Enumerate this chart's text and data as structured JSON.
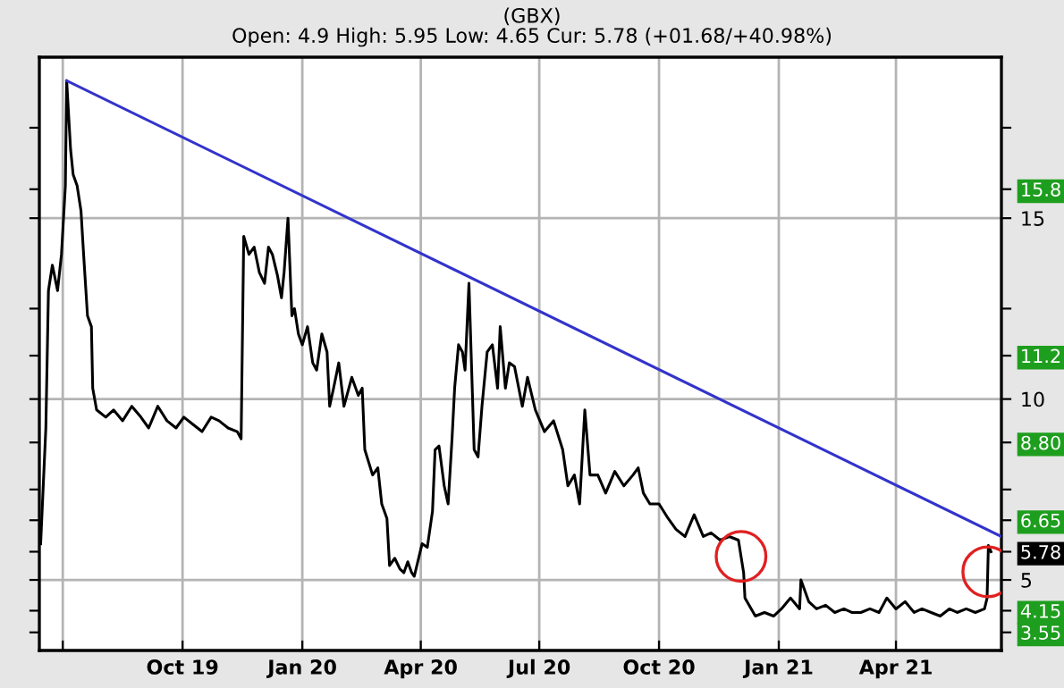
{
  "chart_data": {
    "type": "line",
    "title": "(GBX)",
    "subtitle": "Open: 4.9 High: 5.95 Low: 4.65 Cur: 5.78 (+01.68/+40.98%)",
    "xlim": [
      "2019-06-13",
      "2021-06-21"
    ],
    "xticks": [
      {
        "value": "2019-07-01",
        "label": null
      },
      {
        "value": "2019-10-01",
        "label": "Oct 19"
      },
      {
        "value": "2020-01-01",
        "label": "Jan 20"
      },
      {
        "value": "2020-04-01",
        "label": "Apr 20"
      },
      {
        "value": "2020-07-01",
        "label": "Jul 20"
      },
      {
        "value": "2020-10-01",
        "label": "Oct 20"
      },
      {
        "value": "2021-01-01",
        "label": "Jan 21"
      },
      {
        "value": "2021-04-01",
        "label": "Apr 21"
      }
    ],
    "ylim": [
      3.05,
      19.45
    ],
    "yticks": [
      3.55,
      4.15,
      5,
      5.78,
      6.65,
      {
        "value": 7.5,
        "label": null
      },
      {
        "value": 8.8,
        "label": "8.80"
      },
      10,
      11.2,
      {
        "value": 12.5,
        "label": null
      },
      15,
      15.8,
      {
        "value": 17.5,
        "label": null
      }
    ],
    "grid": true,
    "series": [
      {
        "color": "#000000",
        "x": [
          "2019-06-14",
          "2019-06-18",
          "2019-06-20",
          "2019-06-23",
          "2019-06-27",
          "2019-06-30",
          "2019-07-03",
          "2019-07-04",
          "2019-07-07",
          "2019-07-09",
          "2019-07-12",
          "2019-07-15",
          "2019-07-17",
          "2019-07-20",
          "2019-07-23",
          "2019-07-24",
          "2019-07-27",
          "2019-08-03",
          "2019-08-09",
          "2019-08-16",
          "2019-08-23",
          "2019-08-30",
          "2019-09-05",
          "2019-09-12",
          "2019-09-19",
          "2019-09-26",
          "2019-10-02",
          "2019-10-09",
          "2019-10-16",
          "2019-10-23",
          "2019-10-29",
          "2019-11-05",
          "2019-11-12",
          "2019-11-15",
          "2019-11-17",
          "2019-11-21",
          "2019-11-25",
          "2019-11-29",
          "2019-12-03",
          "2019-12-06",
          "2019-12-09",
          "2019-12-13",
          "2019-12-16",
          "2019-12-18",
          "2019-12-21",
          "2019-12-24",
          "2019-12-26",
          "2019-12-29",
          "2020-01-01",
          "2020-01-05",
          "2020-01-09",
          "2020-01-12",
          "2020-01-16",
          "2020-01-20",
          "2020-01-22",
          "2020-01-25",
          "2020-01-29",
          "2020-02-02",
          "2020-02-08",
          "2020-02-13",
          "2020-02-16",
          "2020-02-18",
          "2020-02-24",
          "2020-02-28",
          "2020-03-02",
          "2020-03-06",
          "2020-03-08",
          "2020-03-12",
          "2020-03-16",
          "2020-03-19",
          "2020-03-22",
          "2020-03-25",
          "2020-03-27",
          "2020-04-02",
          "2020-04-06",
          "2020-04-10",
          "2020-04-12",
          "2020-04-15",
          "2020-04-19",
          "2020-04-22",
          "2020-04-25",
          "2020-04-27",
          "2020-04-30",
          "2020-05-03",
          "2020-05-05",
          "2020-05-08",
          "2020-05-12",
          "2020-05-15",
          "2020-05-18",
          "2020-05-22",
          "2020-05-26",
          "2020-05-30",
          "2020-06-01",
          "2020-06-05",
          "2020-06-08",
          "2020-06-12",
          "2020-06-18",
          "2020-06-22",
          "2020-06-28",
          "2020-07-05",
          "2020-07-12",
          "2020-07-19",
          "2020-07-23",
          "2020-07-28",
          "2020-08-01",
          "2020-08-05",
          "2020-08-09",
          "2020-08-15",
          "2020-08-21",
          "2020-08-28",
          "2020-09-04",
          "2020-09-11",
          "2020-09-15",
          "2020-09-19",
          "2020-09-24",
          "2020-10-01",
          "2020-10-08",
          "2020-10-14",
          "2020-10-21",
          "2020-10-28",
          "2020-11-04",
          "2020-11-10",
          "2020-11-17",
          "2020-11-24",
          "2020-12-01",
          "2020-12-05",
          "2020-12-06",
          "2020-12-14",
          "2020-12-21",
          "2020-12-28",
          "2021-01-03",
          "2021-01-10",
          "2021-01-17",
          "2021-01-18",
          "2021-01-24",
          "2021-01-30",
          "2021-02-06",
          "2021-02-13",
          "2021-02-20",
          "2021-02-26",
          "2021-03-05",
          "2021-03-12",
          "2021-03-19",
          "2021-03-25",
          "2021-04-01",
          "2021-04-08",
          "2021-04-15",
          "2021-04-21",
          "2021-04-28",
          "2021-05-05",
          "2021-05-12",
          "2021-05-18",
          "2021-05-25",
          "2021-06-01",
          "2021-06-08",
          "2021-06-10",
          "2021-06-11",
          "2021-06-13"
        ],
        "values": [
          6.0,
          9.2,
          13.0,
          13.7,
          13.0,
          14.0,
          15.9,
          18.8,
          16.9,
          16.2,
          15.9,
          15.2,
          14.0,
          12.3,
          12.0,
          10.3,
          9.7,
          9.5,
          9.7,
          9.4,
          9.8,
          9.5,
          9.2,
          9.8,
          9.4,
          9.2,
          9.5,
          9.3,
          9.1,
          9.5,
          9.4,
          9.2,
          9.1,
          8.9,
          14.5,
          14.0,
          14.2,
          13.5,
          13.2,
          14.2,
          14.0,
          13.4,
          12.8,
          13.5,
          15.0,
          12.3,
          12.5,
          11.8,
          11.5,
          12.0,
          11.0,
          10.8,
          11.8,
          11.3,
          9.8,
          10.3,
          11.0,
          9.8,
          10.6,
          10.1,
          10.3,
          8.6,
          7.9,
          8.1,
          7.1,
          6.7,
          5.4,
          5.6,
          5.3,
          5.2,
          5.5,
          5.2,
          5.1,
          6.0,
          5.9,
          6.9,
          8.6,
          8.7,
          7.6,
          7.1,
          8.9,
          10.3,
          11.5,
          11.3,
          10.8,
          13.2,
          8.6,
          8.4,
          9.8,
          11.3,
          11.5,
          10.3,
          12.0,
          10.3,
          11.0,
          10.9,
          9.8,
          10.6,
          9.7,
          9.1,
          9.4,
          8.6,
          7.6,
          7.9,
          7.1,
          9.7,
          7.9,
          7.9,
          7.4,
          8.0,
          7.6,
          7.9,
          8.1,
          7.4,
          7.1,
          7.1,
          6.7,
          6.4,
          6.2,
          6.8,
          6.2,
          6.3,
          6.1,
          6.2,
          6.1,
          5.2,
          4.5,
          4.0,
          4.1,
          4.0,
          4.2,
          4.5,
          4.2,
          5.0,
          4.4,
          4.2,
          4.3,
          4.1,
          4.2,
          4.1,
          4.1,
          4.2,
          4.1,
          4.5,
          4.2,
          4.4,
          4.1,
          4.2,
          4.1,
          4.0,
          4.2,
          4.1,
          4.2,
          4.1,
          4.2,
          4.5,
          5.95,
          5.78
        ]
      },
      {
        "color": "#3333cc",
        "x": [
          "2019-07-04",
          "2021-06-21"
        ],
        "values": [
          18.8,
          6.2
        ]
      }
    ]
  }
}
